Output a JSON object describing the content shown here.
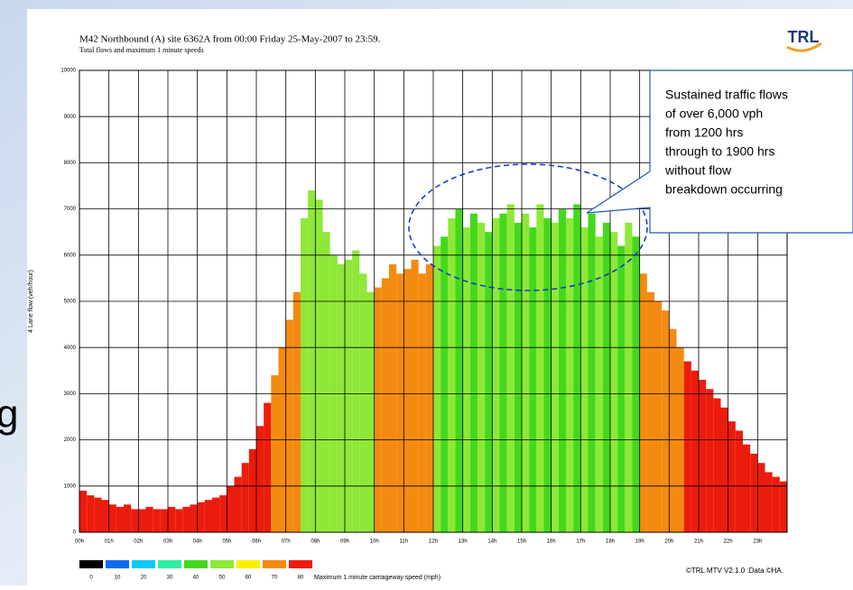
{
  "slide_fragment": "g",
  "chart_data": {
    "type": "bar",
    "title": "M42 Northbound (A) site 6362A from 00:00 Friday 25-May-2007 to 23:59.",
    "subtitle": "Total flows and maximum 1 minute speeds",
    "y_label": "4 Lane flow (veh/hour)",
    "logo": "TRL",
    "footer": "©TRL MTV  V2.1.0  :Data ©HA.",
    "legend_title": "Maximum 1 minute carriageway speed (mph)",
    "legend": [
      {
        "value": 0,
        "color": "#000000"
      },
      {
        "value": 10,
        "color": "#0a6cf0"
      },
      {
        "value": 20,
        "color": "#10c8f8"
      },
      {
        "value": 30,
        "color": "#30eea0"
      },
      {
        "value": 40,
        "color": "#44d81c"
      },
      {
        "value": 50,
        "color": "#8ee838"
      },
      {
        "value": 60,
        "color": "#f8f000"
      },
      {
        "value": 70,
        "color": "#f48a10"
      },
      {
        "value": 80,
        "color": "#ec1c0c"
      }
    ],
    "callout": [
      "Sustained traffic flows",
      "of over 6,000 vph",
      "from 1200 hrs",
      "through to 1900 hrs",
      "without flow",
      "breakdown occurring"
    ],
    "bin_width": 0.25,
    "x": [
      0,
      0.25,
      0.5,
      0.75,
      1,
      1.25,
      1.5,
      1.75,
      2,
      2.25,
      2.5,
      2.75,
      3,
      3.25,
      3.5,
      3.75,
      4,
      4.25,
      4.5,
      4.75,
      5,
      5.25,
      5.5,
      5.75,
      6,
      6.25,
      6.5,
      6.75,
      7,
      7.25,
      7.5,
      7.75,
      8,
      8.25,
      8.5,
      8.75,
      9,
      9.25,
      9.5,
      9.75,
      10,
      10.25,
      10.5,
      10.75,
      11,
      11.25,
      11.5,
      11.75,
      12,
      12.25,
      12.5,
      12.75,
      13,
      13.25,
      13.5,
      13.75,
      14,
      14.25,
      14.5,
      14.75,
      15,
      15.25,
      15.5,
      15.75,
      16,
      16.25,
      16.5,
      16.75,
      17,
      17.25,
      17.5,
      17.75,
      18,
      18.25,
      18.5,
      18.75,
      19,
      19.25,
      19.5,
      19.75,
      20,
      20.25,
      20.5,
      20.75,
      21,
      21.25,
      21.5,
      21.75,
      22,
      22.25,
      22.5,
      22.75,
      23,
      23.25,
      23.5,
      23.75
    ],
    "values": [
      900,
      800,
      750,
      700,
      600,
      550,
      600,
      500,
      500,
      550,
      500,
      500,
      550,
      500,
      550,
      600,
      650,
      700,
      750,
      800,
      1000,
      1200,
      1500,
      1800,
      2300,
      2800,
      3400,
      4000,
      4600,
      5200,
      6800,
      7400,
      7200,
      6500,
      6000,
      5800,
      5900,
      6100,
      5600,
      5200,
      5300,
      5500,
      5800,
      5600,
      5700,
      5900,
      5600,
      5800,
      6200,
      6400,
      6800,
      7000,
      6600,
      6900,
      6700,
      6500,
      6800,
      6900,
      7100,
      6700,
      6900,
      6600,
      7100,
      6800,
      6700,
      7000,
      6800,
      7100,
      6600,
      6900,
      6400,
      6700,
      6500,
      6200,
      6700,
      6400,
      5600,
      5200,
      5000,
      4800,
      4400,
      4000,
      3700,
      3500,
      3300,
      3100,
      2900,
      2700,
      2400,
      2200,
      1900,
      1700,
      1500,
      1300,
      1200,
      1100
    ],
    "speeds": [
      80,
      80,
      80,
      80,
      80,
      80,
      80,
      80,
      80,
      80,
      80,
      80,
      80,
      80,
      80,
      80,
      80,
      80,
      80,
      80,
      80,
      80,
      80,
      80,
      80,
      80,
      70,
      70,
      70,
      70,
      50,
      50,
      50,
      50,
      50,
      50,
      50,
      50,
      50,
      50,
      70,
      70,
      70,
      70,
      70,
      70,
      70,
      70,
      50,
      40,
      50,
      40,
      50,
      40,
      50,
      40,
      50,
      40,
      50,
      40,
      50,
      40,
      50,
      40,
      50,
      40,
      50,
      40,
      50,
      40,
      50,
      40,
      50,
      40,
      50,
      40,
      70,
      70,
      70,
      70,
      70,
      70,
      80,
      80,
      80,
      80,
      80,
      80,
      80,
      80,
      80,
      80,
      80,
      80,
      80,
      80,
      80,
      80
    ],
    "xlim": [
      0,
      24
    ],
    "xticks": [
      {
        "value": 0,
        "label": "00h"
      },
      {
        "value": 1,
        "label": "01h"
      },
      {
        "value": 2,
        "label": "02h"
      },
      {
        "value": 3,
        "label": "03h"
      },
      {
        "value": 4,
        "label": "04h"
      },
      {
        "value": 5,
        "label": "05h"
      },
      {
        "value": 6,
        "label": "06h"
      },
      {
        "value": 7,
        "label": "07h"
      },
      {
        "value": 8,
        "label": "08h"
      },
      {
        "value": 9,
        "label": "09h"
      },
      {
        "value": 10,
        "label": "10h"
      },
      {
        "value": 11,
        "label": "11h"
      },
      {
        "value": 12,
        "label": "12h"
      },
      {
        "value": 13,
        "label": "13h"
      },
      {
        "value": 14,
        "label": "14h"
      },
      {
        "value": 15,
        "label": "15h"
      },
      {
        "value": 16,
        "label": "16h"
      },
      {
        "value": 17,
        "label": "17h"
      },
      {
        "value": 18,
        "label": "18h"
      },
      {
        "value": 19,
        "label": "19h"
      },
      {
        "value": 20,
        "label": "20h"
      },
      {
        "value": 21,
        "label": "21h"
      },
      {
        "value": 22,
        "label": "22h"
      },
      {
        "value": 23,
        "label": "23h"
      }
    ],
    "ylim": [
      0,
      10000
    ],
    "yticks": [
      0,
      1000,
      2000,
      3000,
      4000,
      5000,
      6000,
      7000,
      8000,
      9000,
      10000
    ],
    "grid": true
  }
}
